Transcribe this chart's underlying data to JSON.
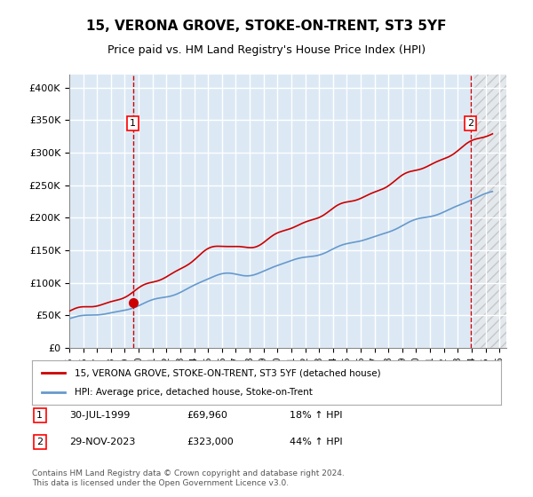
{
  "title": "15, VERONA GROVE, STOKE-ON-TRENT, ST3 5YF",
  "subtitle": "Price paid vs. HM Land Registry's House Price Index (HPI)",
  "ylabel": "",
  "xlim_start": 1995.0,
  "xlim_end": 2026.5,
  "ylim": [
    0,
    420000
  ],
  "yticks": [
    0,
    50000,
    100000,
    150000,
    200000,
    250000,
    300000,
    350000,
    400000
  ],
  "ytick_labels": [
    "£0",
    "£50K",
    "£100K",
    "£150K",
    "£200K",
    "£250K",
    "£300K",
    "£350K",
    "£400K"
  ],
  "bg_color": "#dce9f5",
  "plot_bg": "#dce9f5",
  "grid_color": "#ffffff",
  "hatch_color": "#c0c0c0",
  "sale1_date": 1999.58,
  "sale1_price": 69960,
  "sale2_date": 2023.91,
  "sale2_price": 323000,
  "line_color_red": "#cc0000",
  "line_color_blue": "#6699cc",
  "legend_label_red": "15, VERONA GROVE, STOKE-ON-TRENT, ST3 5YF (detached house)",
  "legend_label_blue": "HPI: Average price, detached house, Stoke-on-Trent",
  "annotation1_label": "1",
  "annotation1_date": "30-JUL-1999",
  "annotation1_price": "£69,960",
  "annotation1_hpi": "18% ↑ HPI",
  "annotation2_label": "2",
  "annotation2_date": "29-NOV-2023",
  "annotation2_price": "£323,000",
  "annotation2_hpi": "44% ↑ HPI",
  "footer": "Contains HM Land Registry data © Crown copyright and database right 2024.\nThis data is licensed under the Open Government Licence v3.0.",
  "xticks": [
    1995,
    1996,
    1997,
    1998,
    1999,
    2000,
    2001,
    2002,
    2003,
    2004,
    2005,
    2006,
    2007,
    2008,
    2009,
    2010,
    2011,
    2012,
    2013,
    2014,
    2015,
    2016,
    2017,
    2018,
    2019,
    2020,
    2021,
    2022,
    2023,
    2024,
    2025,
    2026
  ]
}
